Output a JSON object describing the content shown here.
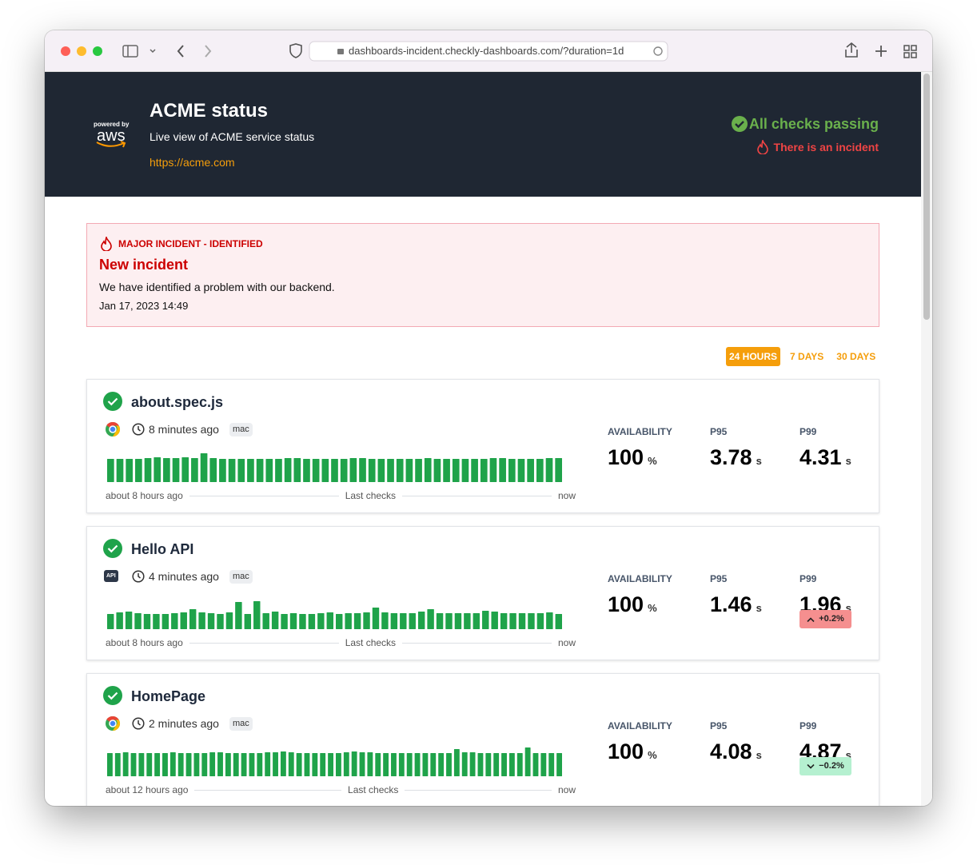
{
  "browser": {
    "url": "dashboards-incident.checkly-dashboards.com/?duration=1d"
  },
  "header": {
    "powered": "powered by",
    "brand": "aws",
    "title": "ACME status",
    "subtitle": "Live view of ACME service status",
    "link": "https://acme.com",
    "status": "All checks passing",
    "incident_note": "There is an incident"
  },
  "incident": {
    "label": "MAJOR INCIDENT - IDENTIFIED",
    "title": "New incident",
    "description": "We have identified a problem with our backend.",
    "date": "Jan 17, 2023 14:49"
  },
  "durations": {
    "items": [
      "24 HOURS",
      "7 DAYS",
      "30 DAYS"
    ],
    "active": 0
  },
  "checks": [
    {
      "name": "about.spec.js",
      "icon": "chrome",
      "time": "8 minutes ago",
      "tag": "mac",
      "timeline": [
        "about 8 hours ago",
        "Last checks",
        "now"
      ],
      "bars": [
        29,
        29,
        29,
        29,
        30,
        31,
        30,
        30,
        31,
        30,
        36,
        30,
        29,
        29,
        29,
        29,
        29,
        29,
        29,
        30,
        30,
        29,
        29,
        29,
        29,
        29,
        30,
        30,
        29,
        29,
        29,
        29,
        29,
        29,
        30,
        29,
        29,
        29,
        29,
        29,
        29,
        30,
        30,
        29,
        29,
        29,
        29,
        30,
        30
      ],
      "stats": [
        {
          "label": "AVAILABILITY",
          "value": 100,
          "unit": "%"
        },
        {
          "label": "P95",
          "value": 3.78,
          "unit": "s"
        },
        {
          "label": "P99",
          "value": 4.31,
          "unit": "s"
        }
      ]
    },
    {
      "name": "Hello API",
      "badge": "API",
      "time": "4 minutes ago",
      "tag": "mac",
      "timeline": [
        "about 8 hours ago",
        "Last checks",
        "now"
      ],
      "bars": [
        19,
        21,
        22,
        20,
        19,
        19,
        19,
        20,
        21,
        25,
        21,
        20,
        19,
        21,
        34,
        19,
        35,
        20,
        22,
        19,
        20,
        19,
        19,
        20,
        21,
        19,
        20,
        20,
        21,
        27,
        21,
        20,
        20,
        20,
        22,
        25,
        20,
        20,
        20,
        20,
        20,
        23,
        22,
        20,
        20,
        20,
        20,
        20,
        21,
        19
      ],
      "stats": [
        {
          "label": "AVAILABILITY",
          "value": 100,
          "unit": "%"
        },
        {
          "label": "P95",
          "value": 1.46,
          "unit": "s"
        },
        {
          "label": "P99",
          "value": 1.96,
          "unit": "s",
          "delta": "+0.2%",
          "trend": "up"
        }
      ]
    },
    {
      "name": "HomePage",
      "icon": "chrome",
      "time": "2 minutes ago",
      "tag": "mac",
      "timeline": [
        "about 12 hours ago",
        "Last checks",
        "now"
      ],
      "bars": [
        29,
        29,
        30,
        29,
        29,
        29,
        29,
        29,
        30,
        29,
        29,
        29,
        29,
        30,
        30,
        29,
        29,
        29,
        29,
        29,
        30,
        30,
        31,
        30,
        29,
        29,
        29,
        29,
        29,
        29,
        30,
        31,
        30,
        30,
        29,
        29,
        29,
        29,
        29,
        29,
        29,
        29,
        29,
        29,
        34,
        30,
        30,
        29,
        29,
        29,
        29,
        29,
        29,
        36,
        29,
        29,
        29,
        29
      ],
      "stats": [
        {
          "label": "AVAILABILITY",
          "value": 100,
          "unit": "%"
        },
        {
          "label": "P95",
          "value": 4.08,
          "unit": "s"
        },
        {
          "label": "P99",
          "value": 4.87,
          "unit": "s",
          "delta": "−0.2%",
          "trend": "down"
        }
      ]
    }
  ]
}
